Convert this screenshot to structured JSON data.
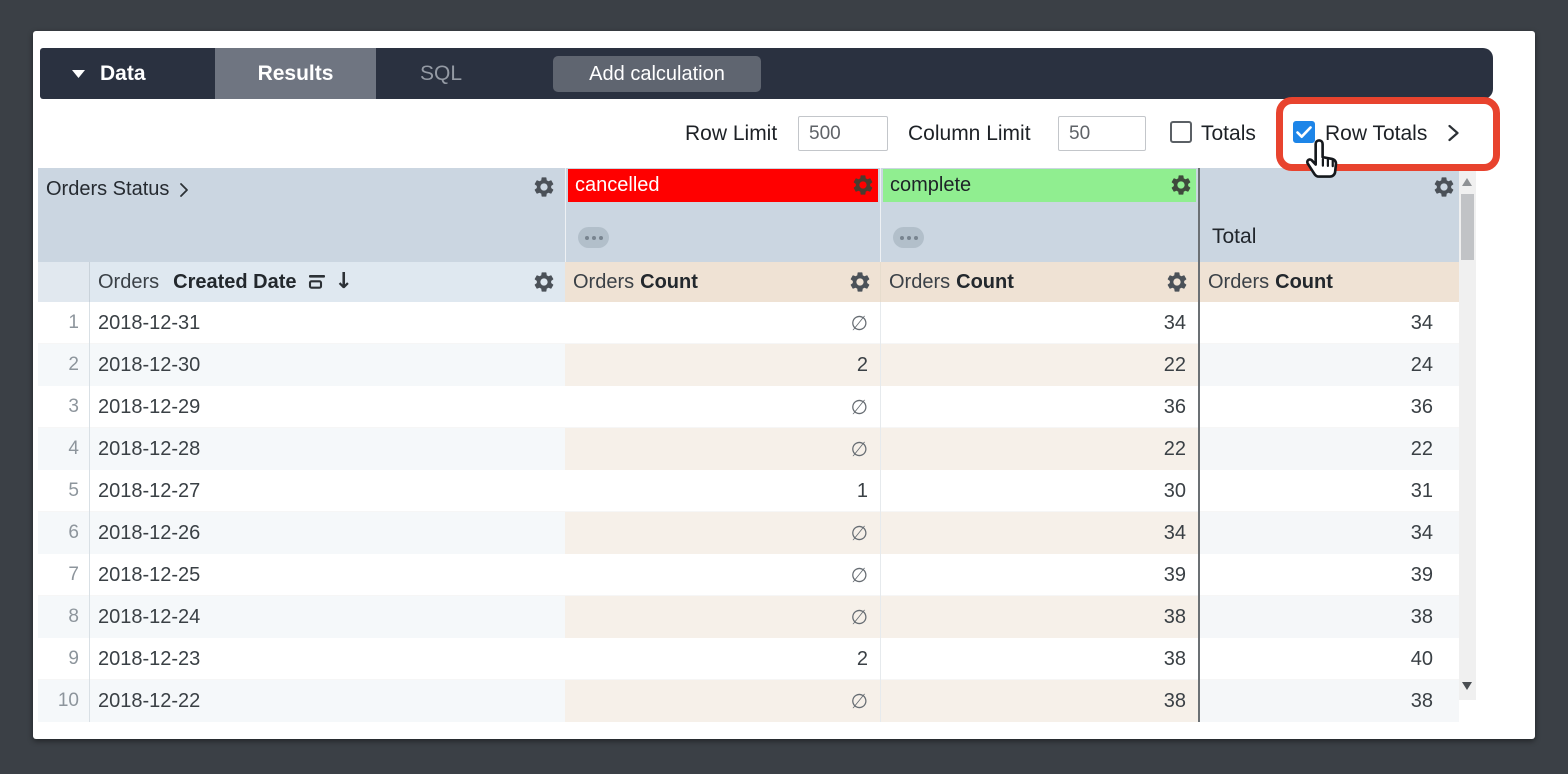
{
  "toolbar": {
    "data_menu": "Data",
    "results_tab": "Results",
    "sql_tab": "SQL",
    "add_calculation": "Add calculation"
  },
  "controls": {
    "row_limit_label": "Row Limit",
    "row_limit_value": "500",
    "column_limit_label": "Column Limit",
    "column_limit_value": "50",
    "totals_label": "Totals",
    "totals_checked": false,
    "row_totals_label": "Row Totals",
    "row_totals_checked": true
  },
  "table": {
    "pivot_field_label": "Orders Status",
    "pivot_values": [
      {
        "label": "cancelled",
        "bg": "#ff0000",
        "text_color": "#ffffff"
      },
      {
        "label": "complete",
        "bg": "#90ee90",
        "text_color": "#1d2227"
      }
    ],
    "total_column_label": "Total",
    "dimension_prefix": "Orders",
    "dimension_name": "Created Date",
    "measure_prefix": "Orders",
    "measure_name": "Count",
    "null_symbol": "∅",
    "rows": [
      {
        "num": "1",
        "date": "2018-12-31",
        "cancelled": "∅",
        "complete": "34",
        "total": "34"
      },
      {
        "num": "2",
        "date": "2018-12-30",
        "cancelled": "2",
        "complete": "22",
        "total": "24"
      },
      {
        "num": "3",
        "date": "2018-12-29",
        "cancelled": "∅",
        "complete": "36",
        "total": "36"
      },
      {
        "num": "4",
        "date": "2018-12-28",
        "cancelled": "∅",
        "complete": "22",
        "total": "22"
      },
      {
        "num": "5",
        "date": "2018-12-27",
        "cancelled": "1",
        "complete": "30",
        "total": "31"
      },
      {
        "num": "6",
        "date": "2018-12-26",
        "cancelled": "∅",
        "complete": "34",
        "total": "34"
      },
      {
        "num": "7",
        "date": "2018-12-25",
        "cancelled": "∅",
        "complete": "39",
        "total": "39"
      },
      {
        "num": "8",
        "date": "2018-12-24",
        "cancelled": "∅",
        "complete": "38",
        "total": "38"
      },
      {
        "num": "9",
        "date": "2018-12-23",
        "cancelled": "2",
        "complete": "38",
        "total": "40"
      },
      {
        "num": "10",
        "date": "2018-12-22",
        "cancelled": "∅",
        "complete": "38",
        "total": "38"
      }
    ]
  },
  "icons": {
    "gear": "settings-gear",
    "sort_descending": "↓",
    "dropdown_triangle": "▼",
    "chevron_right": "❯",
    "ellipsis_pill": "…",
    "cursor": "hand-pointer"
  },
  "colors": {
    "annotation_red": "#e8432e",
    "checkbox_blue": "#1d85e8",
    "pivot_header_bg": "#cbd6e1",
    "dimension_header_bg": "#dfe8f0",
    "measure_header_bg": "#efe2d4",
    "cancelled_bg": "#ff0000",
    "complete_bg": "#90ee90",
    "toolbar_bg": "#2a3140"
  }
}
